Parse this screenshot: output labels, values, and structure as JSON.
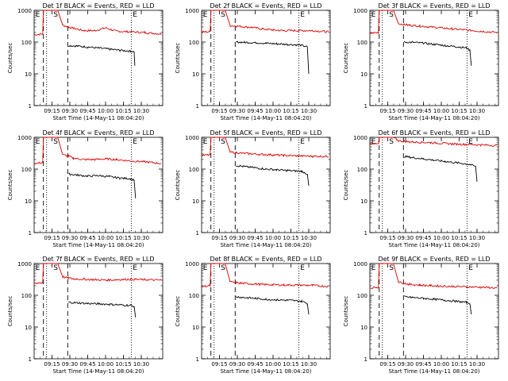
{
  "figure": {
    "ylabel": "Counts/sec",
    "xlabel": "Start Time (14-May-11 08:04:20)",
    "y_tick_labels": [
      "1",
      "10",
      "100",
      "1000"
    ],
    "x_tick_labels": [
      "09:15",
      "09:30",
      "09:45",
      "10:00",
      "10:15",
      "10:30"
    ],
    "marker_letters": [
      "E",
      "S",
      "E"
    ],
    "colors": {
      "events": "#000000",
      "lld": "#dd0000",
      "axes": "#000000",
      "background": "#ffffff"
    }
  },
  "chart_data": [
    {
      "type": "line",
      "panel": "det-1f",
      "title": "Det 1f BLACK = Events, RED = LLD",
      "xlabel": "Start Time (14-May-11 08:04:20)",
      "ylabel": "Counts/sec",
      "yscale": "log",
      "ylim": [
        1,
        1000
      ],
      "xlim": [
        9.0,
        10.8
      ],
      "x_ticks": [
        "09:15",
        "09:30",
        "09:45",
        "10:00",
        "10:15",
        "10:30"
      ],
      "series": [
        {
          "name": "LLD",
          "x": [
            9.0,
            9.12,
            9.13,
            9.17,
            9.33,
            9.4,
            9.48,
            9.55,
            9.7,
            9.85,
            10.0,
            10.15,
            10.35,
            10.55,
            10.78
          ],
          "y": [
            170,
            180,
            1000,
            1000,
            1000,
            340,
            300,
            270,
            230,
            230,
            280,
            220,
            210,
            200,
            180
          ]
        },
        {
          "name": "Events",
          "x": [
            9.48,
            9.6,
            9.75,
            9.9,
            10.05,
            10.2,
            10.35,
            10.4,
            10.41
          ],
          "y": [
            78,
            75,
            70,
            65,
            60,
            55,
            52,
            50,
            18
          ]
        }
      ]
    },
    {
      "type": "line",
      "panel": "det-2f",
      "title": "Det 2f BLACK = Events, RED = LLD",
      "xlabel": "Start Time (14-May-11 08:04:20)",
      "ylabel": "Counts/sec",
      "yscale": "log",
      "ylim": [
        1,
        1000
      ],
      "xlim": [
        9.0,
        10.8
      ],
      "x_ticks": [
        "09:15",
        "09:30",
        "09:45",
        "10:00",
        "10:15",
        "10:30"
      ],
      "series": [
        {
          "name": "LLD",
          "x": [
            9.0,
            9.12,
            9.13,
            9.17,
            9.33,
            9.4,
            9.48,
            9.55,
            9.7,
            9.85,
            10.0,
            10.15,
            10.35,
            10.55,
            10.78
          ],
          "y": [
            210,
            210,
            1000,
            1000,
            1000,
            330,
            320,
            310,
            290,
            260,
            240,
            230,
            230,
            230,
            210
          ]
        },
        {
          "name": "Events",
          "x": [
            9.48,
            9.6,
            9.75,
            9.9,
            10.05,
            10.2,
            10.4,
            10.48,
            10.5
          ],
          "y": [
            100,
            98,
            96,
            92,
            88,
            85,
            80,
            70,
            10
          ]
        }
      ]
    },
    {
      "type": "line",
      "panel": "det-3f",
      "title": "Det 3f BLACK = Events, RED = LLD",
      "xlabel": "Start Time (14-May-11 08:04:20)",
      "ylabel": "Counts/sec",
      "yscale": "log",
      "ylim": [
        1,
        1000
      ],
      "xlim": [
        9.0,
        10.8
      ],
      "x_ticks": [
        "09:15",
        "09:30",
        "09:45",
        "10:00",
        "10:15",
        "10:30"
      ],
      "series": [
        {
          "name": "LLD",
          "x": [
            9.0,
            9.12,
            9.13,
            9.17,
            9.33,
            9.4,
            9.48,
            9.55,
            9.7,
            9.85,
            10.0,
            10.15,
            10.35,
            10.55,
            10.78
          ],
          "y": [
            190,
            200,
            1000,
            1000,
            1000,
            380,
            360,
            340,
            320,
            300,
            280,
            260,
            240,
            220,
            200
          ]
        },
        {
          "name": "Events",
          "x": [
            9.48,
            9.6,
            9.75,
            9.9,
            10.05,
            10.2,
            10.35,
            10.4,
            10.42
          ],
          "y": [
            100,
            98,
            92,
            85,
            78,
            72,
            66,
            55,
            18
          ]
        }
      ]
    },
    {
      "type": "line",
      "panel": "det-4f",
      "title": "Det 4f BLACK = Events, RED = LLD",
      "xlabel": "Start Time (14-May-11 08:04:20)",
      "ylabel": "Counts/sec",
      "yscale": "log",
      "ylim": [
        1,
        1000
      ],
      "xlim": [
        9.0,
        10.8
      ],
      "x_ticks": [
        "09:15",
        "09:30",
        "09:45",
        "10:00",
        "10:15",
        "10:30"
      ],
      "series": [
        {
          "name": "LLD",
          "x": [
            9.0,
            9.12,
            9.13,
            9.17,
            9.33,
            9.4,
            9.48,
            9.55,
            9.7,
            9.85,
            10.0,
            10.15,
            10.35,
            10.55,
            10.78
          ],
          "y": [
            150,
            160,
            1000,
            1000,
            1000,
            280,
            260,
            220,
            200,
            200,
            210,
            200,
            180,
            170,
            150
          ]
        },
        {
          "name": "Events",
          "x": [
            9.48,
            9.6,
            9.75,
            9.9,
            10.05,
            10.2,
            10.35,
            10.4,
            10.42
          ],
          "y": [
            70,
            65,
            60,
            62,
            58,
            52,
            50,
            45,
            12
          ]
        }
      ]
    },
    {
      "type": "line",
      "panel": "det-5f",
      "title": "Det 5f BLACK = Events, RED = LLD",
      "xlabel": "Start Time (14-May-11 08:04:20)",
      "ylabel": "Counts/sec",
      "yscale": "log",
      "ylim": [
        1,
        1000
      ],
      "xlim": [
        9.0,
        10.8
      ],
      "x_ticks": [
        "09:15",
        "09:30",
        "09:45",
        "10:00",
        "10:15",
        "10:30"
      ],
      "series": [
        {
          "name": "LLD",
          "x": [
            9.0,
            9.12,
            9.13,
            9.17,
            9.33,
            9.4,
            9.48,
            9.55,
            9.7,
            9.85,
            10.0,
            10.15,
            10.35,
            10.55,
            10.78
          ],
          "y": [
            270,
            280,
            1000,
            1000,
            1000,
            340,
            330,
            320,
            300,
            290,
            280,
            270,
            260,
            255,
            250
          ]
        },
        {
          "name": "Events",
          "x": [
            9.48,
            9.6,
            9.75,
            9.9,
            10.05,
            10.2,
            10.4,
            10.48,
            10.5
          ],
          "y": [
            130,
            120,
            110,
            100,
            95,
            90,
            85,
            70,
            30
          ]
        }
      ]
    },
    {
      "type": "line",
      "panel": "det-6f",
      "title": "Det 6f BLACK = Events, RED = LLD",
      "xlabel": "Start Time (14-May-11 08:04:20)",
      "ylabel": "Counts/sec",
      "yscale": "log",
      "ylim": [
        1,
        1000
      ],
      "xlim": [
        9.0,
        10.8
      ],
      "x_ticks": [
        "09:15",
        "09:30",
        "09:45",
        "10:00",
        "10:15",
        "10:30"
      ],
      "series": [
        {
          "name": "LLD",
          "x": [
            9.0,
            9.12,
            9.13,
            9.17,
            9.33,
            9.4,
            9.48,
            9.55,
            9.7,
            9.85,
            10.0,
            10.15,
            10.35,
            10.55,
            10.78
          ],
          "y": [
            600,
            620,
            1000,
            1000,
            1000,
            780,
            750,
            720,
            700,
            680,
            650,
            620,
            600,
            580,
            550
          ]
        },
        {
          "name": "Events",
          "x": [
            9.48,
            9.6,
            9.75,
            9.9,
            10.05,
            10.2,
            10.4,
            10.48,
            10.5
          ],
          "y": [
            250,
            230,
            210,
            190,
            175,
            160,
            140,
            120,
            40
          ]
        }
      ]
    },
    {
      "type": "line",
      "panel": "det-7f",
      "title": "Det 7f BLACK = Events, RED = LLD",
      "xlabel": "Start Time (14-May-11 08:04:20)",
      "ylabel": "Counts/sec",
      "yscale": "log",
      "ylim": [
        1,
        1000
      ],
      "xlim": [
        9.0,
        10.8
      ],
      "x_ticks": [
        "09:15",
        "09:30",
        "09:45",
        "10:00",
        "10:15",
        "10:30"
      ],
      "series": [
        {
          "name": "LLD",
          "x": [
            9.0,
            9.12,
            9.13,
            9.17,
            9.33,
            9.4,
            9.48,
            9.55,
            9.7,
            9.85,
            10.0,
            10.15,
            10.35,
            10.55,
            10.78
          ],
          "y": [
            240,
            250,
            1000,
            1000,
            1000,
            380,
            350,
            330,
            320,
            310,
            300,
            310,
            320,
            310,
            300
          ]
        },
        {
          "name": "Events",
          "x": [
            9.48,
            9.6,
            9.75,
            9.9,
            10.05,
            10.2,
            10.35,
            10.4,
            10.42
          ],
          "y": [
            60,
            58,
            55,
            54,
            52,
            50,
            48,
            45,
            20
          ]
        }
      ]
    },
    {
      "type": "line",
      "panel": "det-8f",
      "title": "Det 8f BLACK = Events, RED = LLD",
      "xlabel": "Start Time (14-May-11 08:04:20)",
      "ylabel": "Counts/sec",
      "yscale": "log",
      "ylim": [
        1,
        1000
      ],
      "xlim": [
        9.0,
        10.8
      ],
      "x_ticks": [
        "09:15",
        "09:30",
        "09:45",
        "10:00",
        "10:15",
        "10:30"
      ],
      "series": [
        {
          "name": "LLD",
          "x": [
            9.0,
            9.12,
            9.13,
            9.17,
            9.33,
            9.4,
            9.48,
            9.55,
            9.7,
            9.85,
            10.0,
            10.15,
            10.35,
            10.55,
            10.78
          ],
          "y": [
            190,
            200,
            1000,
            1000,
            1000,
            260,
            250,
            240,
            230,
            220,
            215,
            210,
            210,
            205,
            190
          ]
        },
        {
          "name": "Events",
          "x": [
            9.48,
            9.6,
            9.75,
            9.9,
            10.05,
            10.2,
            10.4,
            10.48,
            10.5
          ],
          "y": [
            90,
            85,
            80,
            75,
            72,
            70,
            65,
            55,
            25
          ]
        }
      ]
    },
    {
      "type": "line",
      "panel": "det-9f",
      "title": "Det 9f BLACK = Events, RED = LLD",
      "xlabel": "Start Time (14-May-11 08:04:20)",
      "ylabel": "Counts/sec",
      "yscale": "log",
      "ylim": [
        1,
        1000
      ],
      "xlim": [
        9.0,
        10.8
      ],
      "x_ticks": [
        "09:15",
        "09:30",
        "09:45",
        "10:00",
        "10:15",
        "10:30"
      ],
      "series": [
        {
          "name": "LLD",
          "x": [
            9.0,
            9.12,
            9.13,
            9.17,
            9.33,
            9.4,
            9.48,
            9.55,
            9.7,
            9.85,
            10.0,
            10.15,
            10.35,
            10.55,
            10.78
          ],
          "y": [
            170,
            180,
            1000,
            1000,
            1000,
            260,
            240,
            220,
            210,
            200,
            195,
            190,
            185,
            180,
            170
          ]
        },
        {
          "name": "Events",
          "x": [
            9.48,
            9.6,
            9.75,
            9.9,
            10.05,
            10.2,
            10.35,
            10.4,
            10.42
          ],
          "y": [
            90,
            85,
            80,
            75,
            70,
            65,
            60,
            55,
            25
          ]
        }
      ]
    }
  ]
}
